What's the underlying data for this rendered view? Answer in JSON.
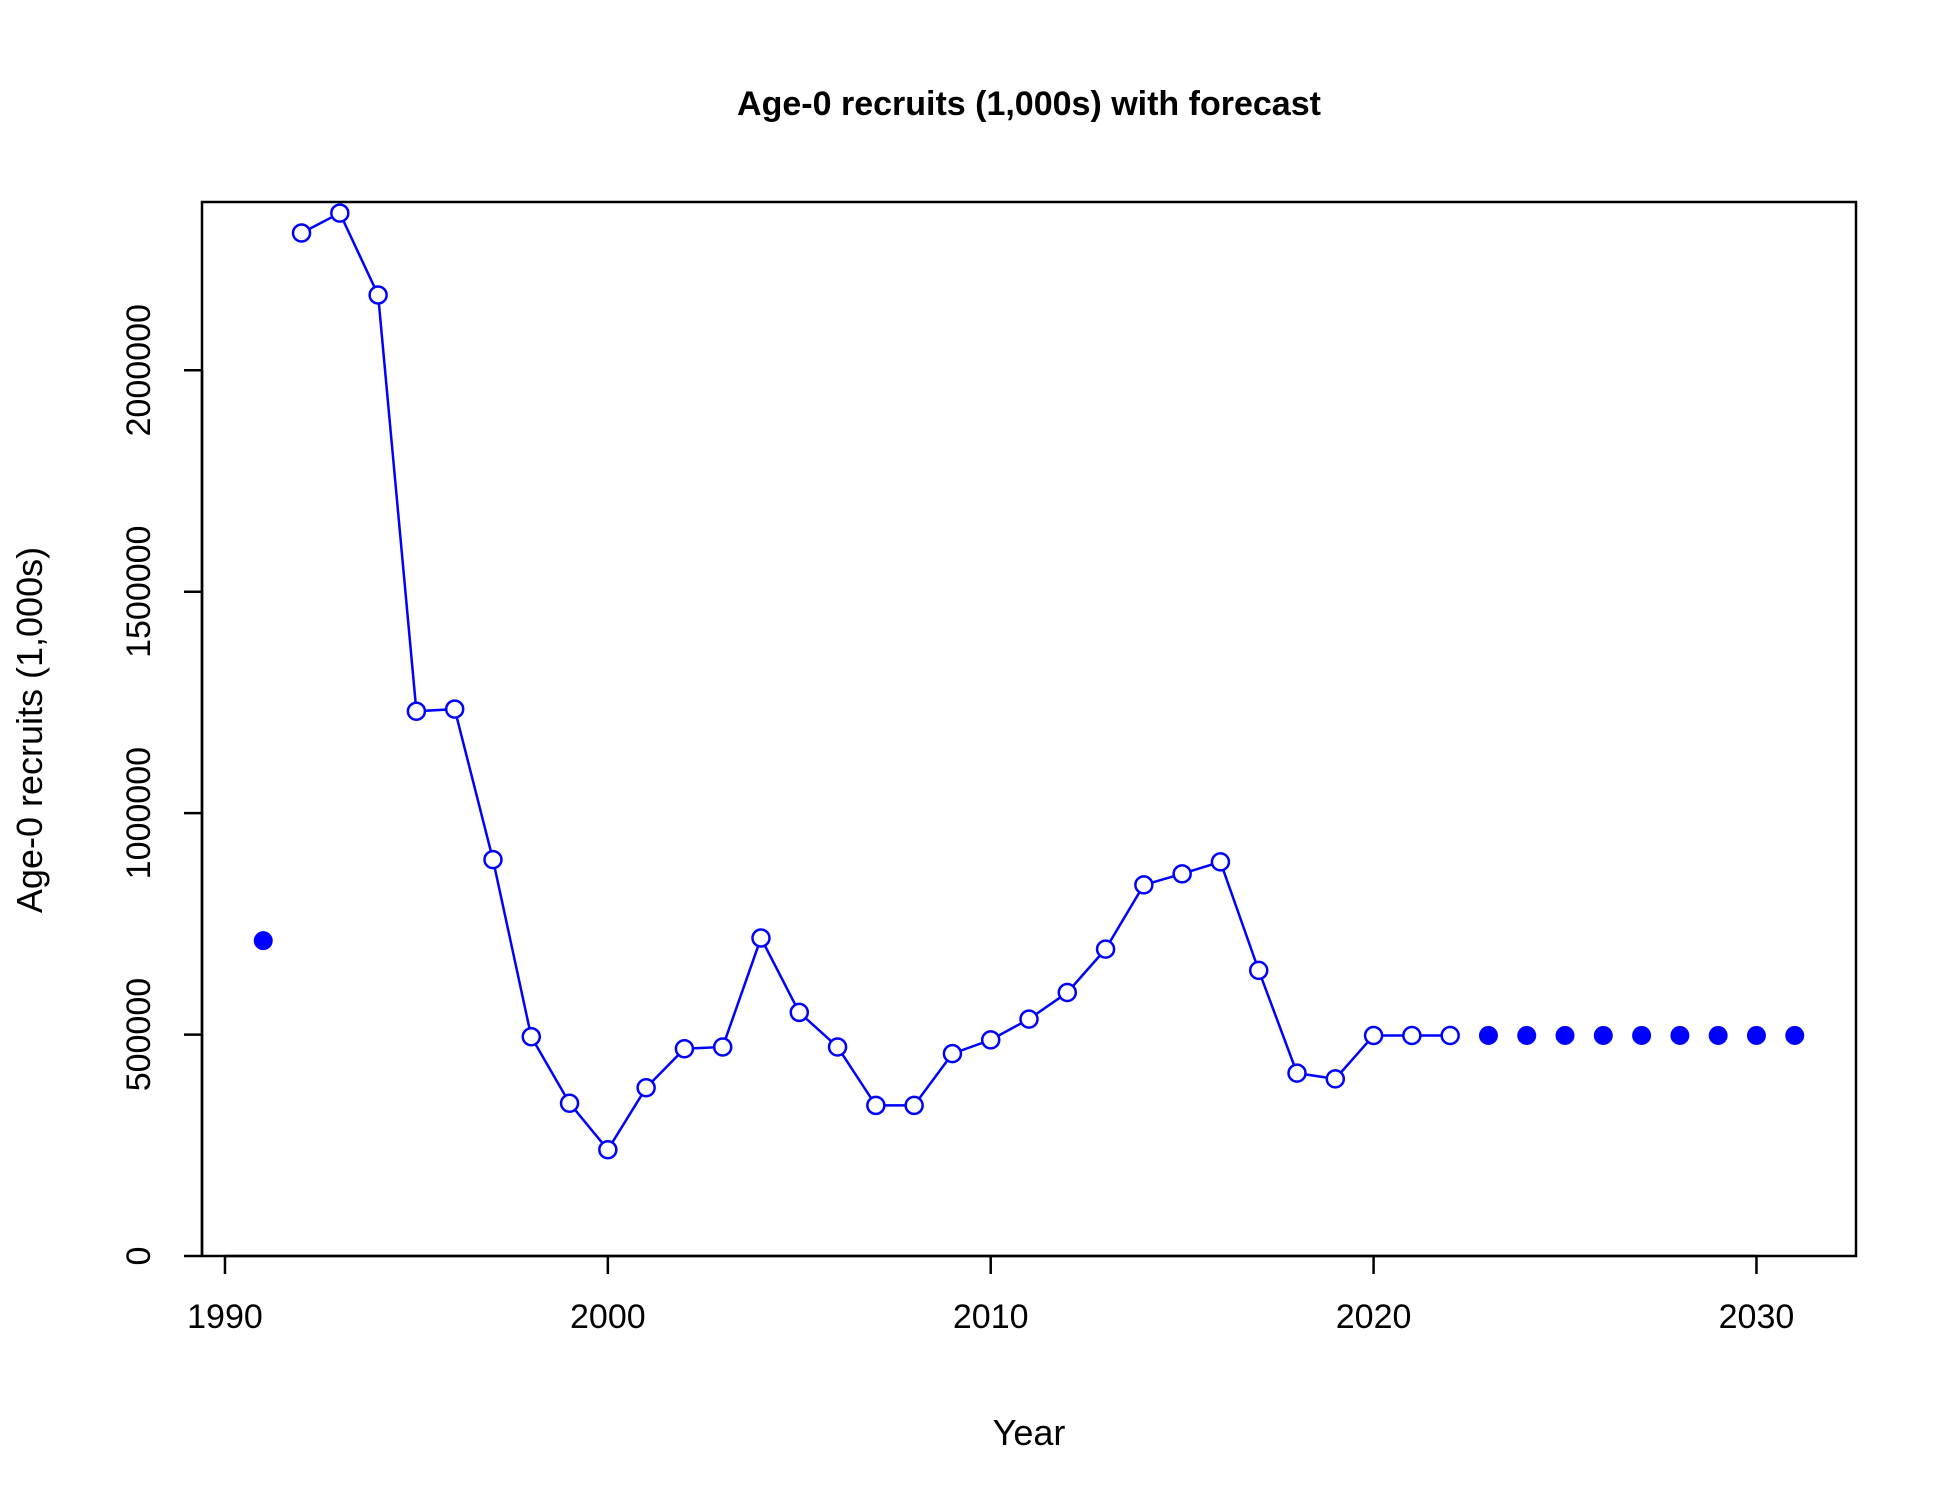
{
  "chart_data": {
    "type": "line",
    "title": "Age-0 recruits (1,000s) with forecast",
    "xlabel": "Year",
    "ylabel": "Age-0 recruits (1,000s)",
    "xlim": [
      1989.4,
      2032.6
    ],
    "ylim": [
      0,
      2380000
    ],
    "xticks": [
      1990,
      2000,
      2010,
      2020,
      2030
    ],
    "yticks": [
      0,
      500000,
      1000000,
      1500000,
      2000000
    ],
    "xtick_labels": [
      "1990",
      "2000",
      "2010",
      "2020",
      "2030"
    ],
    "ytick_labels": [
      "0",
      "500000",
      "1000000",
      "1500000",
      "2000000"
    ],
    "grid": false,
    "legend": "none",
    "color": "#0000ff",
    "series": [
      {
        "style": "line-open-circles",
        "x": [
          1992,
          1993,
          1994,
          1995,
          1996,
          1997,
          1998,
          1999,
          2000,
          2001,
          2002,
          2003,
          2004,
          2005,
          2006,
          2007,
          2008,
          2009,
          2010,
          2011,
          2012,
          2013,
          2014,
          2015,
          2016,
          2017,
          2018,
          2019,
          2020,
          2021,
          2022
        ],
        "y": [
          2310000,
          2355000,
          2170000,
          1230000,
          1235000,
          895000,
          495000,
          345000,
          240000,
          380000,
          468000,
          472000,
          718000,
          550000,
          472000,
          340000,
          340000,
          457000,
          488000,
          535000,
          595000,
          693000,
          838000,
          863000,
          890000,
          645000,
          413000,
          400000,
          498000,
          498000,
          498000
        ]
      },
      {
        "style": "filled-points",
        "x": [
          1991
        ],
        "y": [
          712000
        ]
      },
      {
        "style": "filled-points",
        "x": [
          2023,
          2024,
          2025,
          2026,
          2027,
          2028,
          2029,
          2030,
          2031
        ],
        "y": [
          498000,
          498000,
          498000,
          498000,
          498000,
          498000,
          498000,
          498000,
          498000
        ]
      }
    ]
  }
}
